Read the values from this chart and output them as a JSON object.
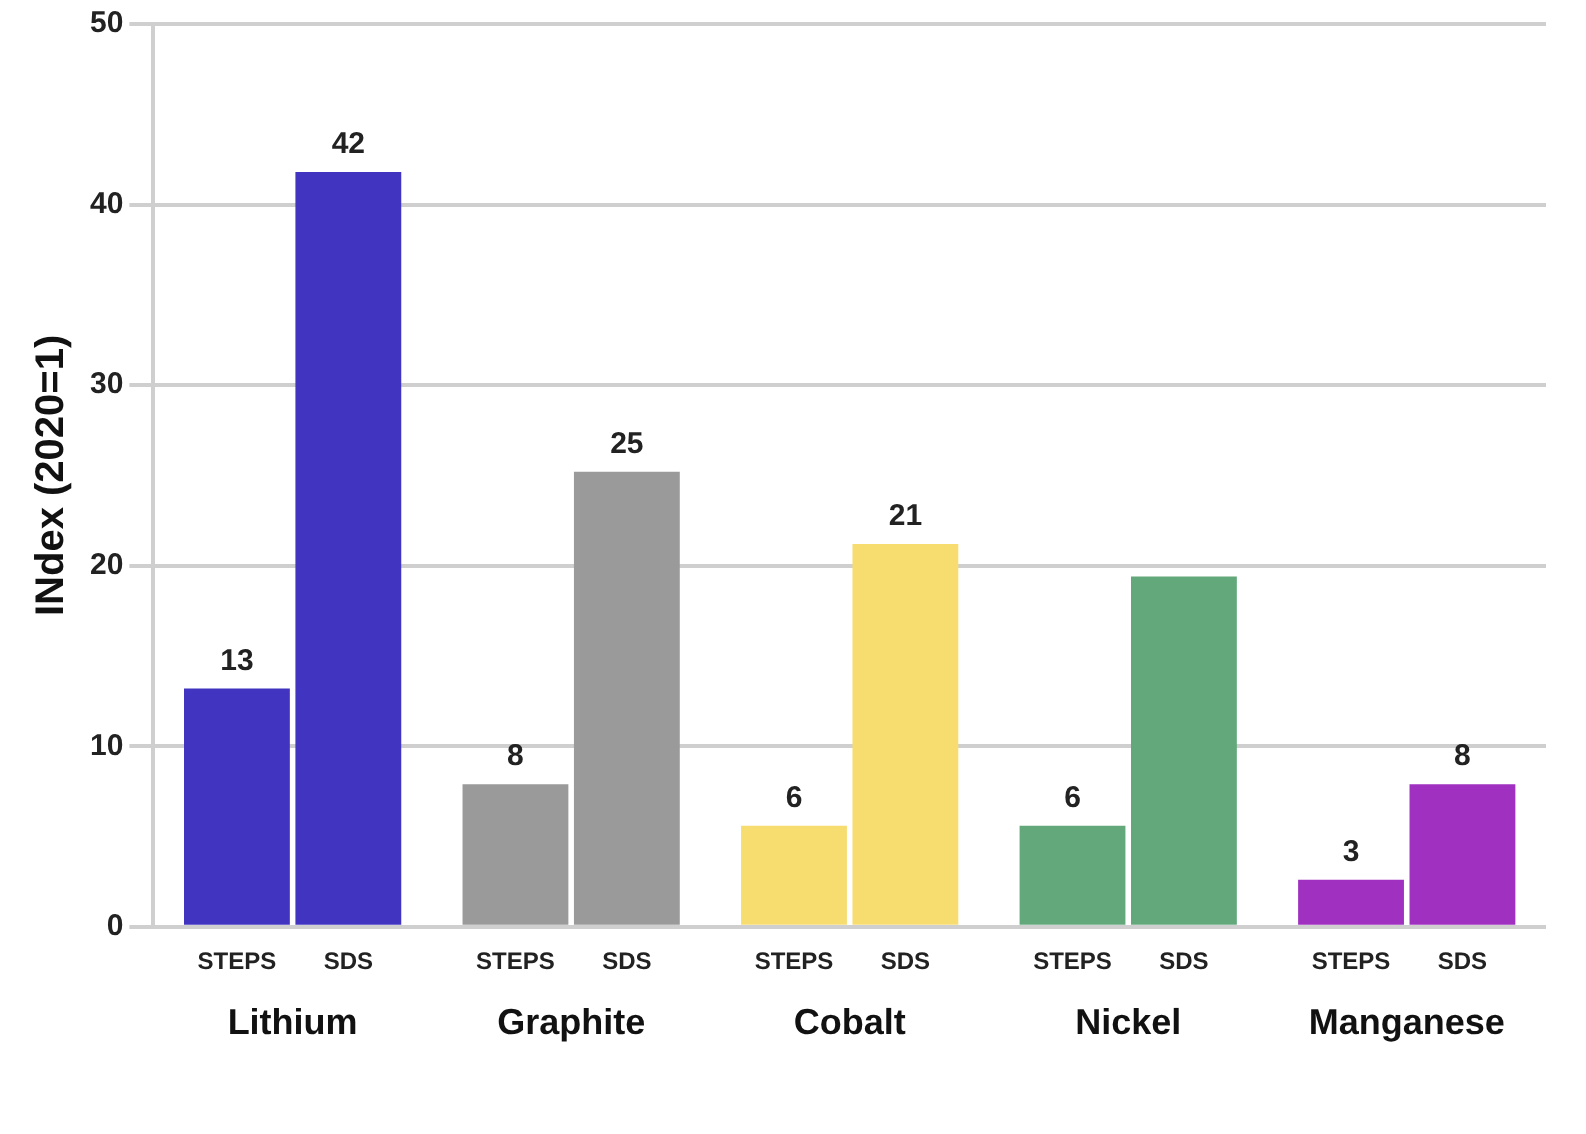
{
  "chart_data": {
    "type": "bar",
    "ylabel": "INdex (2020=1)",
    "categories": [
      "Lithium",
      "Graphite",
      "Cobalt",
      "Nickel",
      "Manganese"
    ],
    "series": [
      {
        "name": "STEPS",
        "colors": [
          "#4034c0",
          "#9a9a9a",
          "#f7dc6f",
          "#63a87b",
          "#a030c0"
        ],
        "values": [
          13.2,
          7.9,
          5.6,
          5.6,
          2.6
        ],
        "value_labels": [
          "13",
          "8",
          "6",
          "6",
          "3"
        ]
      },
      {
        "name": "SDS",
        "colors": [
          "#4034c0",
          "#9a9a9a",
          "#f7dc6f",
          "#63a87b",
          "#a030c0"
        ],
        "values": [
          41.8,
          25.2,
          21.2,
          19.4,
          7.9
        ],
        "value_labels": [
          "42",
          "25",
          "21",
          null,
          "8"
        ]
      }
    ],
    "ylim": [
      0,
      50
    ],
    "yticks": [
      0,
      10,
      20,
      30,
      40,
      50
    ],
    "grid": "y",
    "legend": false
  }
}
